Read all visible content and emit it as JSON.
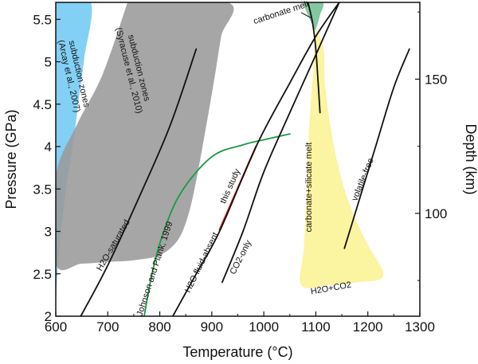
{
  "chart_data": {
    "type": "line",
    "xlabel": "Temperature (°C)",
    "ylabel": "Pressure (GPa)",
    "y2label": "Depth (km)",
    "xlim": [
      600,
      1300
    ],
    "ylim": [
      2,
      5.7
    ],
    "y2lim": [
      61.7,
      178.6
    ],
    "xticks": [
      "600",
      "700",
      "800",
      "900",
      "1000",
      "1100",
      "1200",
      "1300"
    ],
    "yticks": [
      "2",
      "2.5",
      "3",
      "3.5",
      "4",
      "4.5",
      "5",
      "5.5"
    ],
    "y2ticks": [
      "100",
      "150"
    ],
    "regions": [
      {
        "id": "arcay",
        "name": "subduction zones (Arcay et al., 2007)",
        "lines": [
          "subduction zones",
          "(Arcay et al., 2007)"
        ],
        "color": "#7ccdf4",
        "points": [
          [
            600,
            5.7
          ],
          [
            667,
            5.7
          ],
          [
            655,
            5.05
          ],
          [
            645,
            4.6
          ],
          [
            637,
            4.2
          ],
          [
            630,
            3.9
          ],
          [
            622,
            3.6
          ],
          [
            614,
            3.2
          ],
          [
            608,
            2.9
          ],
          [
            602,
            2.4
          ],
          [
            600,
            2.2
          ],
          [
            600,
            5.7
          ]
        ],
        "label_pos": [
          640,
          4.85
        ],
        "label_angle": 77
      },
      {
        "id": "syracuse",
        "name": "subduction zones (Syracuse et al., 2010)",
        "lines": [
          "subduction zones",
          "(Syracuse et al., 2010)"
        ],
        "color": "#9a9a9a",
        "points": [
          [
            738,
            5.7
          ],
          [
            931,
            5.7
          ],
          [
            918,
            5.3
          ],
          [
            905,
            4.8
          ],
          [
            888,
            4.2
          ],
          [
            870,
            3.6
          ],
          [
            855,
            3.2
          ],
          [
            835,
            2.9
          ],
          [
            800,
            2.72
          ],
          [
            750,
            2.66
          ],
          [
            700,
            2.64
          ],
          [
            650,
            2.62
          ],
          [
            600,
            2.62
          ],
          [
            600,
            3.65
          ],
          [
            640,
            4.25
          ],
          [
            690,
            4.85
          ],
          [
            738,
            5.7
          ]
        ],
        "label_pos": [
          755,
          4.92
        ],
        "label_angle": 76
      },
      {
        "id": "yellow",
        "name": "carbonate+silicate melt",
        "color": "#fbf39b",
        "points": [
          [
            1100,
            5.4
          ],
          [
            1115,
            5.15
          ],
          [
            1118,
            4.7
          ],
          [
            1135,
            4.0
          ],
          [
            1160,
            3.4
          ],
          [
            1195,
            2.9
          ],
          [
            1230,
            2.48
          ],
          [
            1180,
            2.4
          ],
          [
            1125,
            2.37
          ],
          [
            1072,
            2.37
          ],
          [
            1078,
            2.9
          ],
          [
            1087,
            4.2
          ],
          [
            1095,
            4.9
          ],
          [
            1100,
            5.4
          ]
        ],
        "label_pos": null,
        "label_angle": 0
      },
      {
        "id": "green",
        "name": "carbonate melt",
        "color": "#7cc49b",
        "points": [
          [
            1075,
            5.7
          ],
          [
            1113,
            5.7
          ],
          [
            1108,
            5.55
          ],
          [
            1102,
            5.42
          ],
          [
            1098,
            5.38
          ],
          [
            1090,
            5.48
          ],
          [
            1080,
            5.62
          ],
          [
            1075,
            5.7
          ]
        ],
        "label_pos": null,
        "label_angle": 0
      }
    ],
    "series": [
      {
        "id": "h2o-saturated",
        "name": "H2O-saturated",
        "color": "#111111",
        "points": [
          [
            648,
            2.0
          ],
          [
            700,
            2.6
          ],
          [
            760,
            3.4
          ],
          [
            820,
            4.25
          ],
          [
            870,
            5.15
          ]
        ]
      },
      {
        "id": "johnson-plank",
        "name": "Johnson and Plank, 1999",
        "color": "#1a9a44",
        "points": [
          [
            770,
            2.0
          ],
          [
            785,
            2.5
          ],
          [
            805,
            2.95
          ],
          [
            840,
            3.45
          ],
          [
            900,
            3.88
          ],
          [
            960,
            4.02
          ],
          [
            1000,
            4.08
          ],
          [
            1050,
            4.15
          ]
        ]
      },
      {
        "id": "this-study",
        "name": "this study",
        "color": "#e02020",
        "points": [
          [
            915,
            3.02
          ],
          [
            985,
            4.0
          ]
        ]
      },
      {
        "id": "h2o-fluid-absent",
        "name": "H2O fluid-absent",
        "color": "#111111",
        "points": [
          [
            825,
            2.0
          ],
          [
            870,
            2.5
          ],
          [
            915,
            3.0
          ],
          [
            985,
            4.0
          ],
          [
            1050,
            4.75
          ],
          [
            1100,
            5.3
          ],
          [
            1145,
            5.7
          ]
        ]
      },
      {
        "id": "co2-only",
        "name": "CO2-only",
        "color": "#111111",
        "points": [
          [
            920,
            2.4
          ],
          [
            960,
            3.0
          ],
          [
            1000,
            3.7
          ],
          [
            1050,
            4.4
          ],
          [
            1105,
            5.15
          ],
          [
            1145,
            5.7
          ]
        ]
      },
      {
        "id": "carbonate-melt",
        "name": "carbonate melt",
        "color": "#111111",
        "points": [
          [
            1085,
            5.7
          ],
          [
            1094,
            5.45
          ],
          [
            1100,
            5.15
          ],
          [
            1105,
            4.7
          ],
          [
            1108,
            4.4
          ]
        ]
      },
      {
        "id": "volatile-free",
        "name": "volatile-free",
        "color": "#111111",
        "points": [
          [
            1155,
            2.8
          ],
          [
            1185,
            3.4
          ],
          [
            1215,
            4.0
          ],
          [
            1250,
            4.7
          ],
          [
            1280,
            5.15
          ]
        ]
      }
    ],
    "labels": [
      {
        "id": "label-h2o-saturated",
        "text": "H2O-saturated",
        "x": 715,
        "y": 2.82,
        "angle": -60,
        "color": "#111111"
      },
      {
        "id": "label-johnson-plank",
        "text": "Johnson and Plank, 1999",
        "x": 795,
        "y": 2.55,
        "angle": -72,
        "color": "#1a9a44"
      },
      {
        "id": "label-this-study",
        "text": "this study",
        "x": 940,
        "y": 3.52,
        "angle": -66,
        "color": "#e02020"
      },
      {
        "id": "label-h2o-fluid-absent",
        "text": "H2O fluid-absent",
        "x": 885,
        "y": 2.62,
        "angle": -64,
        "color": "#111111"
      },
      {
        "id": "label-co2-only",
        "text": "CO2-only",
        "x": 960,
        "y": 2.68,
        "angle": -63,
        "color": "#111111"
      },
      {
        "id": "label-carbonate-silicate",
        "text": "carbonate+silicate melt",
        "x": 1092,
        "y": 3.52,
        "angle": -90,
        "color": "#111111"
      },
      {
        "id": "label-volatile-free",
        "text": "volatile-free",
        "x": 1195,
        "y": 3.6,
        "angle": -68,
        "color": "#111111"
      },
      {
        "id": "label-h2o-co2",
        "text": "H2O+CO2",
        "x": 1130,
        "y": 2.3,
        "angle": -10,
        "color": "#111111"
      },
      {
        "id": "label-carbonate-melt",
        "text": "carbonate melt",
        "x": 1035,
        "y": 5.55,
        "angle": -18,
        "color": "#111111"
      }
    ]
  }
}
